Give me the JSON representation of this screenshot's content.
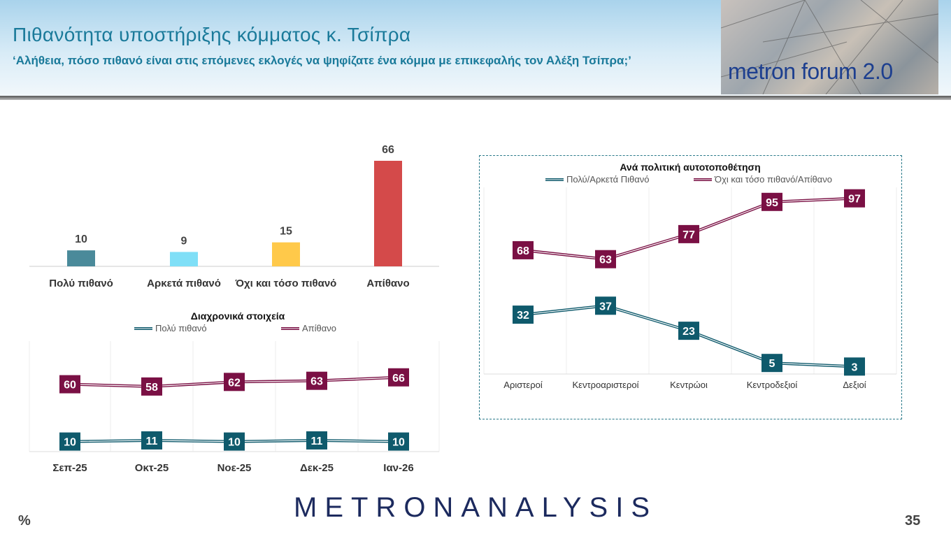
{
  "header": {
    "title": "Πιθανότητα υποστήριξης κόμματος κ. Τσίπρα",
    "subtitle": "‘Αλήθεια, πόσο πιθανό είναι στις επόμενες εκλογές να ψηφίζατε ένα κόμμα με επικεφαλής τον Αλέξη Τσίπρα;’",
    "logo_text": "metron forum 2.0"
  },
  "footer": {
    "brand": "METRONANALYSIS",
    "unit": "%",
    "page": "35"
  },
  "chart_data": [
    {
      "type": "bar",
      "categories": [
        "Πολύ πιθανό",
        "Αρκετά πιθανό",
        "Όχι και τόσο πιθανό",
        "Απίθανο"
      ],
      "values": [
        10,
        9,
        15,
        66
      ],
      "colors": [
        "#4a8a9a",
        "#7fdff7",
        "#ffc94a",
        "#d44a4a"
      ],
      "ylim": [
        0,
        66
      ],
      "grid": false
    },
    {
      "type": "line",
      "title": "Διαχρονικά στοιχεία",
      "categories": [
        "Σεπ-25",
        "Οκτ-25",
        "Νοε-25",
        "Δεκ-25",
        "Ιαν-26"
      ],
      "series": [
        {
          "name": "Πολύ πιθανό",
          "values": [
            10,
            11,
            10,
            11,
            10
          ],
          "color": "#0f5a6c"
        },
        {
          "name": "Απίθανο",
          "values": [
            60,
            58,
            62,
            63,
            66
          ],
          "color": "#7a1044"
        }
      ],
      "legend": "top",
      "grid": "vertical"
    },
    {
      "type": "line",
      "title": "Ανά πολιτική αυτοτοποθέτηση",
      "categories": [
        "Αριστεροί",
        "Κεντροαριστεροί",
        "Κεντρώοι",
        "Κεντροδεξιοί",
        "Δεξιοί"
      ],
      "series": [
        {
          "name": "Πολύ/Αρκετά Πιθανό",
          "values": [
            32,
            37,
            23,
            5,
            3
          ],
          "color": "#0f5a6c"
        },
        {
          "name": "Όχι και τόσο πιθανό/Απίθανο",
          "values": [
            68,
            63,
            77,
            95,
            97
          ],
          "color": "#7a1044"
        }
      ],
      "legend": "top",
      "grid": "vertical"
    }
  ]
}
